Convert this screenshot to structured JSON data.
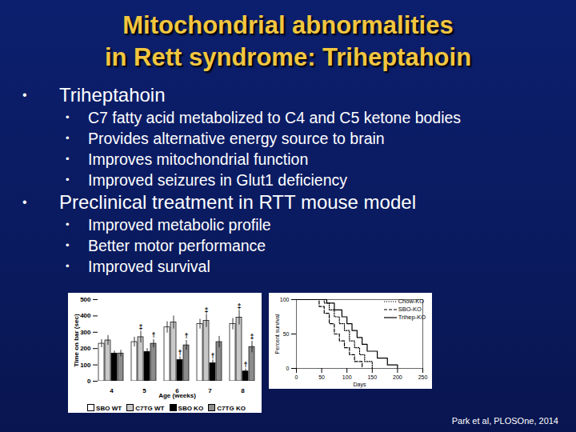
{
  "slide": {
    "title": [
      "Mitochondrial abnormalities",
      "in Rett syndrome: Triheptahoin"
    ],
    "bullets": [
      {
        "text": "Triheptahoin",
        "sub": [
          "C7 fatty acid metabolized to C4 and C5 ketone bodies",
          "Provides alternative energy source to brain",
          "Improves mitochondrial function",
          "Improved seizures in Glut1 deficiency"
        ]
      },
      {
        "text": "Preclinical treatment in RTT mouse model",
        "sub": [
          "Improved metabolic profile",
          "Better motor performance",
          "Improved survival"
        ]
      }
    ],
    "citation": "Park et al, PLOSOne, 2014"
  },
  "chart_data": [
    {
      "type": "bar",
      "x_label": "Age (weeks)",
      "y_label": "Time on bar (sec)",
      "categories": [
        "4",
        "5",
        "6",
        "7",
        "8"
      ],
      "ylim": [
        0,
        500
      ],
      "yticks": [
        0,
        100,
        200,
        300,
        400,
        500
      ],
      "grid": false,
      "legend": "bottom",
      "series": [
        {
          "name": "SBO WT",
          "color": "#ffffff",
          "values": [
            230,
            240,
            330,
            350,
            350
          ],
          "errors": [
            25,
            30,
            35,
            30,
            35
          ]
        },
        {
          "name": "C7TG WT",
          "color": "#c8c8c8",
          "values": [
            250,
            270,
            360,
            370,
            390
          ],
          "errors": [
            30,
            35,
            40,
            40,
            45
          ]
        },
        {
          "name": "SBO KO",
          "color": "#000000",
          "values": [
            170,
            180,
            130,
            110,
            60
          ],
          "errors": [
            15,
            20,
            20,
            20,
            15
          ]
        },
        {
          "name": "C7TG KO",
          "color": "#8c8c8c",
          "values": [
            170,
            230,
            220,
            240,
            210
          ],
          "errors": [
            20,
            25,
            30,
            35,
            35
          ]
        }
      ],
      "annotations": [
        {
          "category": "5",
          "series": "C7TG WT",
          "text": "‡"
        },
        {
          "category": "5",
          "series": "C7TG KO",
          "text": "†"
        },
        {
          "category": "6",
          "series": "SBO KO",
          "text": "†"
        },
        {
          "category": "6",
          "series": "C7TG KO",
          "text": "†"
        },
        {
          "category": "7",
          "series": "C7TG WT",
          "text": "‡"
        },
        {
          "category": "7",
          "series": "SBO KO",
          "text": "†"
        },
        {
          "category": "8",
          "series": "C7TG WT",
          "text": "‡"
        },
        {
          "category": "8",
          "series": "SBO KO",
          "text": "†"
        },
        {
          "category": "8",
          "series": "C7TG KO",
          "text": "‡"
        }
      ]
    },
    {
      "type": "line",
      "x_label": "Days",
      "y_label": "Percent survival",
      "xlim": [
        0,
        250
      ],
      "xticks": [
        0,
        50,
        100,
        150,
        200,
        250
      ],
      "ylim": [
        0,
        100
      ],
      "yticks": [
        0,
        50,
        100
      ],
      "legend": "top-right",
      "series": [
        {
          "name": "Chow-KO",
          "color": "#000000",
          "line_style": "dotted",
          "x": [
            0,
            55,
            65,
            75,
            85,
            95,
            105,
            115,
            125,
            135,
            150
          ],
          "values": [
            100,
            95,
            85,
            75,
            65,
            55,
            40,
            30,
            20,
            10,
            0
          ]
        },
        {
          "name": "SBO-KO",
          "color": "#000000",
          "line_style": "dashed",
          "x": [
            0,
            45,
            55,
            65,
            75,
            85,
            95,
            105,
            115,
            130
          ],
          "values": [
            100,
            90,
            80,
            65,
            50,
            40,
            30,
            20,
            10,
            0
          ]
        },
        {
          "name": "Trihep-KO",
          "color": "#000000",
          "line_style": "solid",
          "x": [
            0,
            60,
            75,
            90,
            100,
            110,
            120,
            130,
            140,
            160,
            180,
            200
          ],
          "values": [
            100,
            95,
            85,
            75,
            65,
            55,
            45,
            35,
            25,
            15,
            5,
            0
          ]
        }
      ]
    }
  ]
}
